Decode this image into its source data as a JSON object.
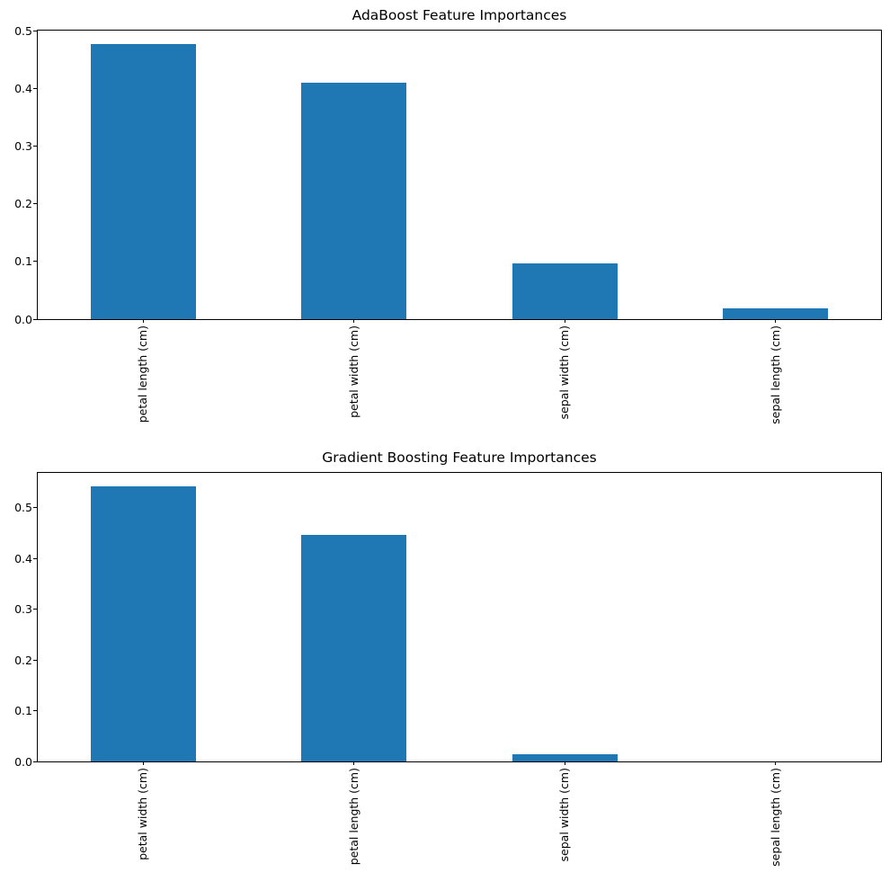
{
  "figure": {
    "background": "#ffffff",
    "text_color": "#000000",
    "spine_color": "#000000",
    "accent_bar_color": "#1f77b4"
  },
  "chart_data": [
    {
      "type": "bar",
      "title": "AdaBoost Feature Importances",
      "categories": [
        "petal length (cm)",
        "petal width (cm)",
        "sepal width (cm)",
        "sepal length (cm)"
      ],
      "values": [
        0.476,
        0.41,
        0.096,
        0.018
      ],
      "bar_color": "#1f77b4",
      "xlabel": "",
      "ylabel": "",
      "ylim": [
        0,
        0.5
      ],
      "yticks": [
        "0.0",
        "0.1",
        "0.2",
        "0.3",
        "0.4",
        "0.5"
      ],
      "x_tick_rotation": 90,
      "bar_width_fraction": 0.5,
      "grid": false,
      "legend": null
    },
    {
      "type": "bar",
      "title": "Gradient Boosting Feature Importances",
      "categories": [
        "petal width (cm)",
        "petal length (cm)",
        "sepal width (cm)",
        "sepal length (cm)"
      ],
      "values": [
        0.542,
        0.446,
        0.014,
        0.0
      ],
      "bar_color": "#1f77b4",
      "xlabel": "",
      "ylabel": "",
      "ylim": [
        0,
        0.569
      ],
      "yticks": [
        "0.0",
        "0.1",
        "0.2",
        "0.3",
        "0.4",
        "0.5"
      ],
      "x_tick_rotation": 90,
      "bar_width_fraction": 0.5,
      "grid": false,
      "legend": null
    }
  ]
}
